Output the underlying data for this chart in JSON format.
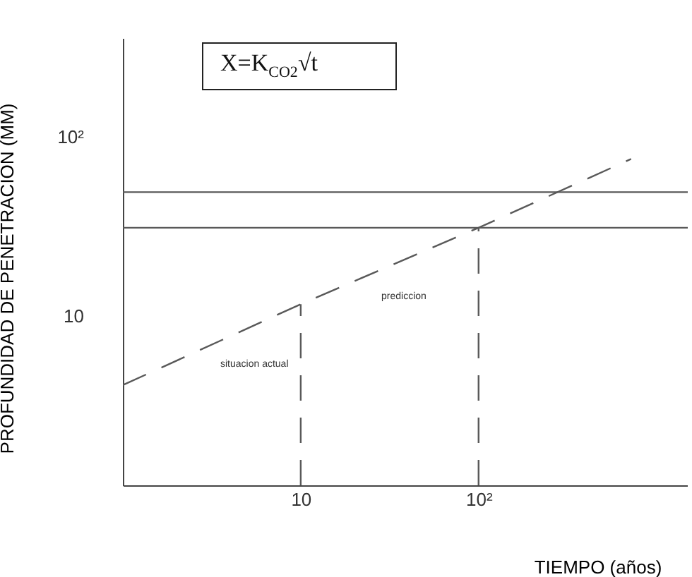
{
  "chart_data": {
    "type": "line",
    "xlabel": "TIEMPO (años)",
    "ylabel": "PROFUNDIDAD DE PENETRACION (MM)",
    "log": "xy",
    "xlim": [
      1,
      1500
    ],
    "ylim": [
      1.13,
      355
    ],
    "xticks": [
      10,
      {
        "value": 100,
        "label": "10²"
      }
    ],
    "yticks": [
      10,
      {
        "value": 100,
        "label": "10²"
      }
    ],
    "grid": false,
    "line_style": "dashed",
    "series": [
      {
        "color": "#595959",
        "x": [
          1,
          10,
          100,
          720
        ],
        "values": [
          4.1,
          11.6,
          31,
          75
        ]
      },
      {
        "color": "#595959",
        "x": [
          10,
          10
        ],
        "values": [
          1.13,
          11.6
        ]
      },
      {
        "color": "#595959",
        "x": [
          100,
          100
        ],
        "values": [
          1.13,
          31
        ]
      }
    ],
    "ref_lines": [
      {
        "axis": "y",
        "value": 49,
        "line_style": "solid",
        "color": "#595959"
      },
      {
        "axis": "y",
        "value": 31,
        "line_style": "solid",
        "color": "#595959"
      }
    ],
    "annotations": [
      "X=K$_{CO2}$√t",
      "prediccion",
      "situacion actual"
    ]
  }
}
